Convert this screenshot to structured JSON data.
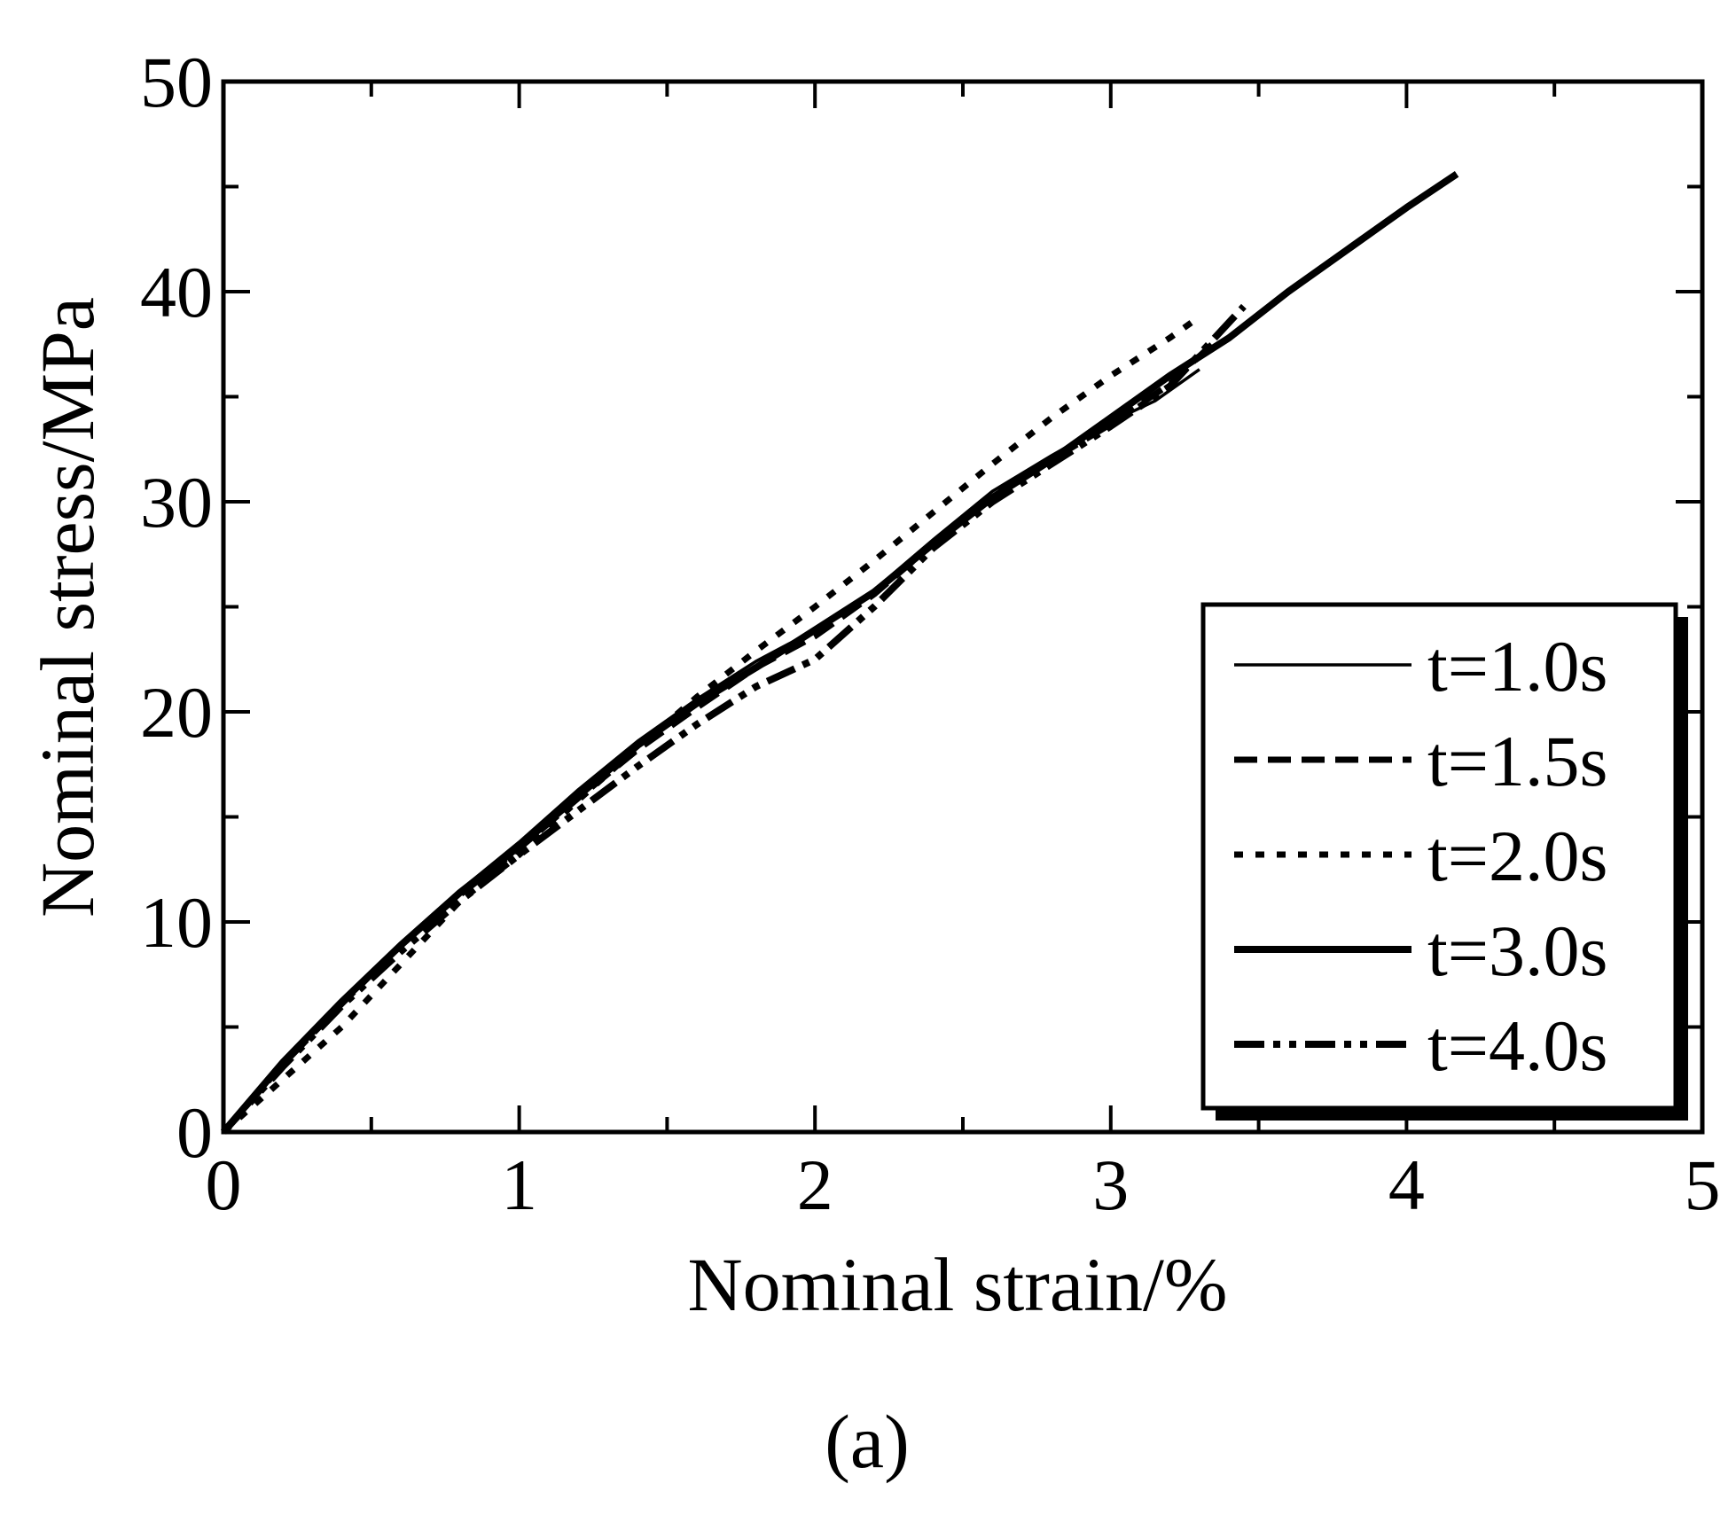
{
  "chart_data": {
    "type": "line",
    "title": "",
    "caption": "(a)",
    "xlabel": "Nominal strain/%",
    "ylabel": "Nominal stress/MPa",
    "xlim": [
      0,
      5
    ],
    "ylim": [
      0,
      50
    ],
    "xticks": [
      0,
      1,
      2,
      3,
      4,
      5
    ],
    "yticks": [
      0,
      10,
      20,
      30,
      40,
      50
    ],
    "xtick_labels": [
      "0",
      "1",
      "2",
      "3",
      "4",
      "5"
    ],
    "ytick_labels": [
      "0",
      "10",
      "20",
      "30",
      "40",
      "50"
    ],
    "grid": false,
    "legend_position": "bottom-right",
    "series": [
      {
        "name": "t=1.0s",
        "style": "thin-solid",
        "x": [
          0,
          0.2,
          0.4,
          0.6,
          0.8,
          1.0,
          1.2,
          1.4,
          1.6,
          1.8,
          2.0,
          2.2,
          2.4,
          2.6,
          2.8,
          3.0,
          3.15,
          3.3
        ],
        "y": [
          0,
          3.3,
          6.3,
          9.0,
          11.5,
          13.8,
          16.3,
          18.6,
          20.6,
          22.4,
          23.9,
          25.8,
          28.2,
          30.5,
          32.2,
          33.8,
          34.8,
          36.3
        ]
      },
      {
        "name": "t=1.5s",
        "style": "dashed",
        "x": [
          0,
          0.2,
          0.4,
          0.6,
          0.8,
          1.0,
          1.2,
          1.4,
          1.6,
          1.8,
          2.0,
          2.2,
          2.4,
          2.6,
          2.8,
          3.0,
          3.2,
          3.35
        ],
        "y": [
          0,
          3.2,
          6.1,
          8.9,
          11.3,
          13.5,
          15.9,
          18.2,
          20.2,
          22.1,
          23.6,
          25.6,
          28.0,
          30.3,
          32.0,
          33.7,
          35.6,
          37.6
        ]
      },
      {
        "name": "t=2.0s",
        "style": "dotted",
        "x": [
          0,
          0.2,
          0.4,
          0.6,
          0.8,
          1.0,
          1.2,
          1.4,
          1.6,
          1.8,
          2.0,
          2.2,
          2.4,
          2.6,
          2.8,
          3.0,
          3.2,
          3.3
        ],
        "y": [
          0,
          2.5,
          5.0,
          8.0,
          11.0,
          13.2,
          15.8,
          18.3,
          20.7,
          22.9,
          25.0,
          27.2,
          29.5,
          31.8,
          34.0,
          36.0,
          37.8,
          38.8
        ]
      },
      {
        "name": "t=3.0s",
        "style": "thick-solid",
        "x": [
          0,
          0.2,
          0.4,
          0.6,
          0.8,
          1.0,
          1.2,
          1.4,
          1.6,
          1.8,
          2.0,
          2.2,
          2.4,
          2.6,
          2.8,
          3.0,
          3.2,
          3.4,
          3.6,
          3.8,
          4.0,
          4.17
        ],
        "y": [
          0,
          3.3,
          6.2,
          8.9,
          11.4,
          13.6,
          16.0,
          18.4,
          20.4,
          22.1,
          23.9,
          25.7,
          28.0,
          30.2,
          32.0,
          34.0,
          36.0,
          37.8,
          40.0,
          42.0,
          44.0,
          45.6
        ]
      },
      {
        "name": "t=4.0s",
        "style": "dash-dot-dot",
        "x": [
          0,
          0.2,
          0.4,
          0.6,
          0.8,
          1.0,
          1.2,
          1.4,
          1.6,
          1.8,
          2.0,
          2.2,
          2.4,
          2.6,
          2.8,
          3.0,
          3.2,
          3.45
        ],
        "y": [
          0,
          3.1,
          6.0,
          8.6,
          11.0,
          13.2,
          15.3,
          17.4,
          19.4,
          21.2,
          22.5,
          25.0,
          27.8,
          30.0,
          31.8,
          33.6,
          35.5,
          39.3
        ]
      }
    ]
  }
}
